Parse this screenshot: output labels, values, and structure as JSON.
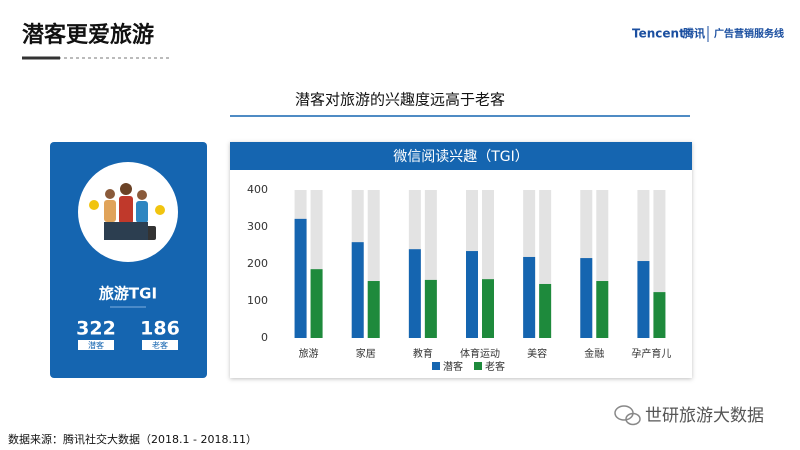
{
  "header": {
    "title": "潜客更爱旅游",
    "brand": "Tencent",
    "brand_cn": "腾讯",
    "division": "广告营销服务线"
  },
  "subtitle": "潜客对旅游的兴趣度远高于老客",
  "panel": {
    "title": "旅游TGI"
  },
  "chart_data": {
    "type": "bar",
    "title": "微信阅读兴趣（TGI）",
    "categories": [
      "旅游",
      "家居",
      "教育",
      "体育运动",
      "美容",
      "金融",
      "孕产育儿"
    ],
    "series": [
      {
        "name": "潜客",
        "color": "#1565b0",
        "values": [
          322,
          259,
          240,
          235,
          219,
          216,
          208
        ]
      },
      {
        "name": "老客",
        "color": "#1e8a3c",
        "values": [
          186,
          154,
          157,
          159,
          146,
          154,
          124
        ]
      }
    ],
    "ylim": [
      0,
      400
    ],
    "yticks": [
      0,
      100,
      200,
      300,
      400
    ],
    "grid": false,
    "track_color": "#e3e3e3"
  },
  "footer": {
    "source": "数据来源：腾讯社交大数据（2018.1 - 2018.11）",
    "watermark": "世研旅游大数据"
  }
}
